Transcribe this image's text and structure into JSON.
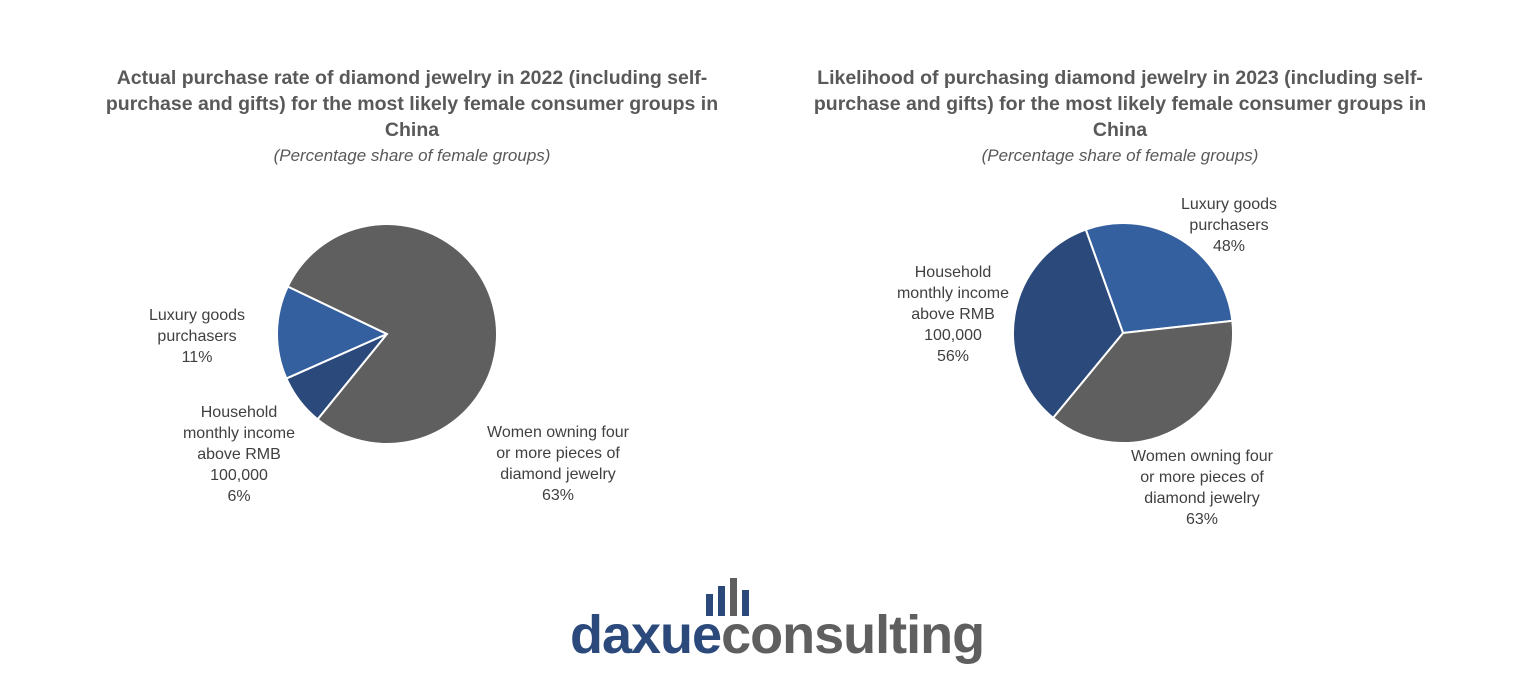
{
  "chart_data": [
    {
      "type": "pie",
      "title": "Actual purchase rate of diamond jewelry in 2022 (including self-purchase and gifts) for the most likely female consumer groups in China",
      "subtitle": "(Percentage share of female groups)",
      "categories": [
        "Luxury goods purchasers",
        "Household monthly income above RMB 100,000",
        "Women owning four or more pieces of diamond jewelry"
      ],
      "values": [
        11,
        6,
        63
      ],
      "value_labels": [
        "11%",
        "6%",
        "63%"
      ],
      "colors": [
        "#3560a0",
        "#2b4a7b",
        "#5f5f5f"
      ]
    },
    {
      "type": "pie",
      "title": "Likelihood of purchasing diamond jewelry in 2023 (including self-purchase and gifts) for the most likely female consumer groups in China",
      "subtitle": "(Percentage share of female groups)",
      "categories": [
        "Luxury goods purchasers",
        "Women owning four or more pieces of diamond jewelry",
        "Household monthly income above RMB 100,000"
      ],
      "values": [
        48,
        63,
        56
      ],
      "value_labels": [
        "48%",
        "63%",
        "56%"
      ],
      "colors": [
        "#3560a0",
        "#5f5f5f",
        "#2b4a7b"
      ]
    }
  ],
  "logo": {
    "brand": "daxue",
    "suffix": "consulting"
  }
}
